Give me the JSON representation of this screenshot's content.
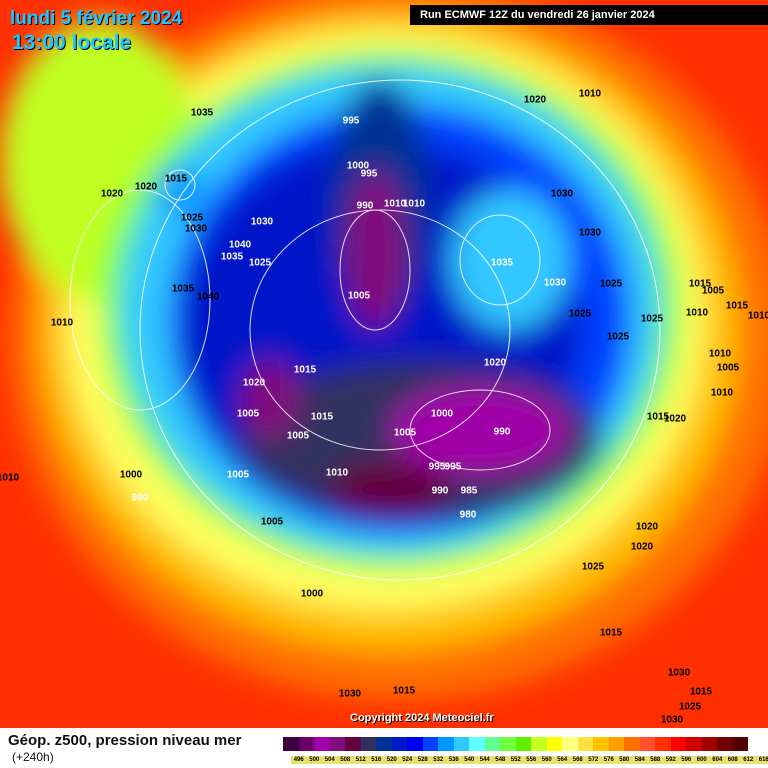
{
  "header": {
    "date_line": "lundi 5 février 2024",
    "time_line": "13:00 locale",
    "run_info": "Run ECMWF 12Z du vendredi 26 janvier 2024"
  },
  "map": {
    "pressure_labels": [
      "1035",
      "1015",
      "1020",
      "1020",
      "1025",
      "1030",
      "1030",
      "1040",
      "1035",
      "1025",
      "1035",
      "1040",
      "1010",
      "995",
      "1000",
      "995",
      "990",
      "1010",
      "1010",
      "1005",
      "1020",
      "1010",
      "1030",
      "1035",
      "1030",
      "1030",
      "1025",
      "1025",
      "1025",
      "1025",
      "1015",
      "1005",
      "1015",
      "1010",
      "1010",
      "1010",
      "1005",
      "1010",
      "1020",
      "1015",
      "1005",
      "1015",
      "1015",
      "1020",
      "1000",
      "990",
      "1005",
      "1010",
      "1005",
      "1005",
      "995",
      "995",
      "1000",
      "990",
      "990",
      "985",
      "980",
      "1005",
      "1010",
      "1020",
      "1020",
      "1020",
      "1000",
      "1025",
      "1015",
      "1030",
      "1030",
      "1015",
      "1015",
      "1030",
      "1025"
    ],
    "copyright": "Copyright 2024 Meteociel.fr"
  },
  "footer": {
    "title": "Géop. z500, pression niveau mer",
    "subtitle": "(+240h)",
    "legend": [
      {
        "label": "496",
        "color": "#3a0040"
      },
      {
        "label": "500",
        "color": "#6a0068"
      },
      {
        "label": "504",
        "color": "#a000a8"
      },
      {
        "label": "508",
        "color": "#800c7c"
      },
      {
        "label": "512",
        "color": "#640040"
      },
      {
        "label": "516",
        "color": "#303060"
      },
      {
        "label": "520",
        "color": "#003294"
      },
      {
        "label": "524",
        "color": "#0018c8"
      },
      {
        "label": "528",
        "color": "#0000f0"
      },
      {
        "label": "532",
        "color": "#0040ff"
      },
      {
        "label": "536",
        "color": "#0096ff"
      },
      {
        "label": "540",
        "color": "#30c8ff"
      },
      {
        "label": "544",
        "color": "#60ffff"
      },
      {
        "label": "548",
        "color": "#60ff90"
      },
      {
        "label": "552",
        "color": "#70ff40"
      },
      {
        "label": "556",
        "color": "#60ee00"
      },
      {
        "label": "560",
        "color": "#c0ff20"
      },
      {
        "label": "564",
        "color": "#ffff00"
      },
      {
        "label": "568",
        "color": "#ffff80"
      },
      {
        "label": "572",
        "color": "#ffe040"
      },
      {
        "label": "576",
        "color": "#ffc000"
      },
      {
        "label": "580",
        "color": "#ffa000"
      },
      {
        "label": "584",
        "color": "#ff7000"
      },
      {
        "label": "588",
        "color": "#ff5030"
      },
      {
        "label": "592",
        "color": "#ff3000"
      },
      {
        "label": "596",
        "color": "#ff0000"
      },
      {
        "label": "600",
        "color": "#d00000"
      },
      {
        "label": "604",
        "color": "#a00000"
      },
      {
        "label": "608",
        "color": "#700000"
      },
      {
        "label": "612",
        "color": "#500000"
      },
      {
        "label": "616",
        "color": "#000000"
      }
    ]
  }
}
